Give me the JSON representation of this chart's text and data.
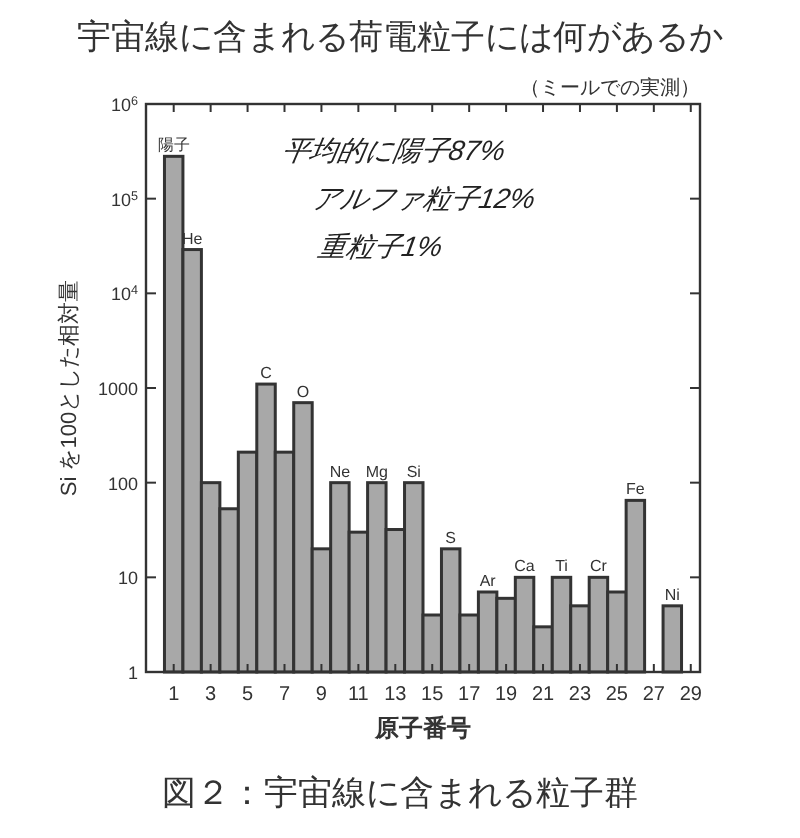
{
  "chart_data": {
    "type": "bar",
    "title": "宇宙線に含まれる荷電粒子には何があるか",
    "subtitle": "（ミールでの実測）",
    "xlabel": "原子番号",
    "ylabel": "Si を100とした相対量",
    "x": [
      1,
      2,
      3,
      4,
      5,
      6,
      7,
      8,
      9,
      10,
      11,
      12,
      13,
      14,
      15,
      16,
      17,
      18,
      19,
      20,
      21,
      22,
      23,
      24,
      25,
      26,
      28
    ],
    "values": [
      280000,
      29000,
      100,
      53,
      210,
      1100,
      210,
      700,
      20,
      100,
      30,
      100,
      32,
      100,
      4,
      20,
      4,
      7,
      6,
      10,
      3,
      10,
      5,
      10,
      7,
      65,
      5
    ],
    "color": "#a8a8a8",
    "log": true,
    "xlim": [
      -0.5,
      29.5
    ],
    "xticks": [
      1,
      3,
      5,
      7,
      9,
      11,
      13,
      15,
      17,
      19,
      21,
      23,
      25,
      27,
      29
    ],
    "ylim": [
      1,
      1000000
    ],
    "yticks": [
      1,
      10,
      100,
      1000,
      {
        "value": 10000,
        "label": "10$^{4}$"
      },
      {
        "value": 100000,
        "label": "10$^{5}$"
      },
      {
        "value": 1000000,
        "label": "10$^{6}$"
      }
    ],
    "annotations": [
      {
        "text": "陽子",
        "x": 1,
        "y": 280000
      },
      {
        "text": "He",
        "x": 2,
        "y": 29000
      },
      {
        "text": "C",
        "x": 6,
        "y": 1100
      },
      {
        "text": "O",
        "x": 8,
        "y": 700
      },
      {
        "text": "Ne",
        "x": 10,
        "y": 100
      },
      {
        "text": "Mg",
        "x": 12,
        "y": 100
      },
      {
        "text": "Si",
        "x": 14,
        "y": 100
      },
      {
        "text": "S",
        "x": 16,
        "y": 20
      },
      {
        "text": "Ar",
        "x": 18,
        "y": 7
      },
      {
        "text": "Ca",
        "x": 20,
        "y": 10
      },
      {
        "text": "Ti",
        "x": 22,
        "y": 10
      },
      {
        "text": "Cr",
        "x": 24,
        "y": 10
      },
      {
        "text": "Fe",
        "x": 26,
        "y": 65
      },
      {
        "text": "Ni",
        "x": 28,
        "y": 5
      },
      "平均的に陽子87%",
      "アルファ粒子12%",
      "重粒子1%",
      "図２：宇宙線に含まれる粒子群"
    ]
  }
}
